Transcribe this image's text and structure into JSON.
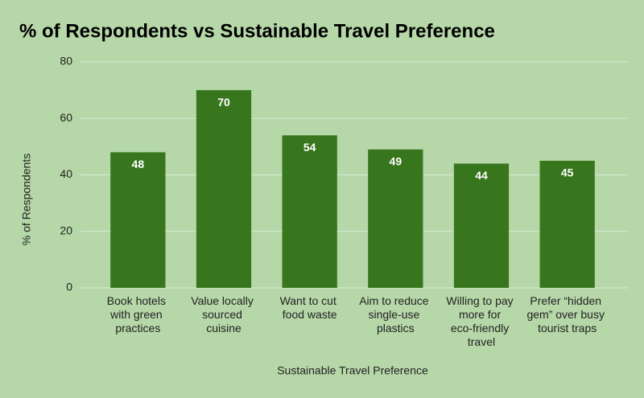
{
  "chart_data": {
    "type": "bar",
    "title": "% of Respondents vs Sustainable Travel Preference",
    "x_label": "Sustainable Travel Preference",
    "y_label": "% of Respondents",
    "categories": [
      "Book hotels with green practices",
      "Value locally sourced cuisine",
      "Want to cut food waste",
      "Aim to reduce single-use plastics",
      "Willing to pay more for eco-friendly travel",
      "Prefer “hidden gem” over busy tourist traps"
    ],
    "values": [
      48,
      70,
      54,
      49,
      44,
      45
    ],
    "color": "#38761d",
    "ylim": [
      0,
      80
    ],
    "yticks": [
      0,
      20,
      40,
      60,
      80
    ],
    "grid": true
  }
}
